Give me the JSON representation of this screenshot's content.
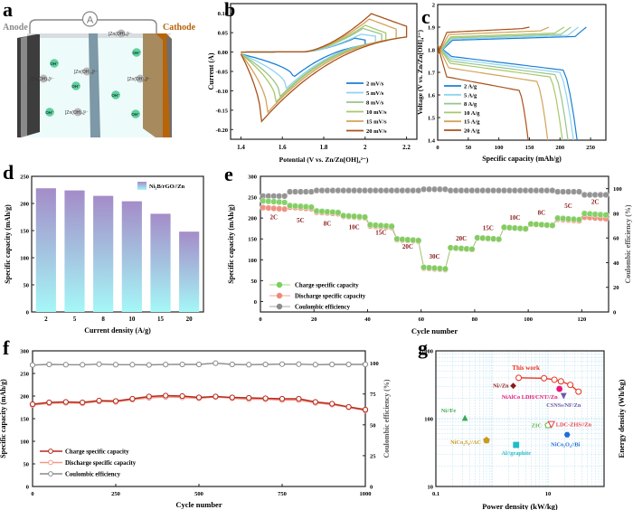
{
  "figure": {
    "panel_labels": [
      "a",
      "b",
      "c",
      "d",
      "e",
      "f",
      "g"
    ]
  },
  "schematic": {
    "anode_label": "Anode",
    "cathode_label": "Cathode",
    "ammeter_label": "A",
    "species": [
      {
        "text": "[Zn(OH)₄]²⁻",
        "kind": "zincate"
      },
      {
        "text": "[Zn(OH)₄]²⁻",
        "kind": "zincate"
      },
      {
        "text": "[Zn(OH)₄]²⁻",
        "kind": "zincate"
      },
      {
        "text": "[Zn(OH)₄]²⁻",
        "kind": "zincate"
      },
      {
        "text": "[Zn(OH)₄]²⁻",
        "kind": "zincate"
      },
      {
        "text": "OH⁻",
        "kind": "hydroxide"
      },
      {
        "text": "OH⁻",
        "kind": "hydroxide"
      },
      {
        "text": "OH⁻",
        "kind": "hydroxide"
      },
      {
        "text": "OH⁻",
        "kind": "hydroxide"
      },
      {
        "text": "OH⁻",
        "kind": "hydroxide"
      },
      {
        "text": "OH⁻",
        "kind": "hydroxide"
      }
    ],
    "colors": {
      "anode": "#3d3d3d",
      "cathode": "#a78a5e",
      "cathode_edge": "#b8640a",
      "separator": "#7d98a6",
      "electrolyte": "#eefbfb",
      "oh": "#5fcf9f",
      "zincate": "#b9b9b9",
      "anode_text": "#8a8a8a",
      "cathode_text": "#b8640a"
    }
  },
  "chart_data": [
    {
      "id": "b",
      "type": "line",
      "title": "",
      "xlabel": "Potential (V vs. Zn/Zn[OH]₄²⁻)",
      "ylabel": "Current (A)",
      "xlim": [
        1.35,
        2.25
      ],
      "ylim": [
        -0.225,
        0.125
      ],
      "xticks": [
        1.4,
        1.6,
        1.8,
        2.0,
        2.2
      ],
      "yticks": [
        0.1,
        0.05,
        0.0,
        -0.05,
        -0.1,
        -0.15,
        -0.2
      ],
      "ytick_labels": [
        "0.10",
        "0.05",
        "0.00",
        "-0.05",
        "-0.10",
        "-0.15",
        "-0.20"
      ],
      "legend_position": "bottom-right",
      "series": [
        {
          "name": "2 mV/s",
          "color": "#1a7fd4",
          "vmin": 1.4,
          "vmax": 2.0,
          "cathodic_peak": [
            1.65,
            -0.06
          ],
          "anodic_peak": [
            1.95,
            0.035
          ],
          "end_current": 0.03
        },
        {
          "name": "5 mV/s",
          "color": "#8fd3f0",
          "vmin": 1.4,
          "vmax": 2.05,
          "cathodic_peak": [
            1.62,
            -0.088
          ],
          "anodic_peak": [
            1.98,
            0.045
          ],
          "end_current": 0.04
        },
        {
          "name": "8 mV/s",
          "color": "#98c48a",
          "vmin": 1.4,
          "vmax": 2.08,
          "cathodic_peak": [
            1.59,
            -0.11
          ],
          "anodic_peak": [
            1.99,
            0.06
          ],
          "end_current": 0.045
        },
        {
          "name": "10 mV/s",
          "color": "#a7c86a",
          "vmin": 1.4,
          "vmax": 2.1,
          "cathodic_peak": [
            1.57,
            -0.125
          ],
          "anodic_peak": [
            2.0,
            0.068
          ],
          "end_current": 0.048
        },
        {
          "name": "15 mV/s",
          "color": "#d4a25a",
          "vmin": 1.4,
          "vmax": 2.15,
          "cathodic_peak": [
            1.53,
            -0.153
          ],
          "anodic_peak": [
            2.02,
            0.084
          ],
          "end_current": 0.058
        },
        {
          "name": "20 mV/s",
          "color": "#a9521a",
          "vmin": 1.4,
          "vmax": 2.2,
          "cathodic_peak": [
            1.5,
            -0.178
          ],
          "anodic_peak": [
            2.03,
            0.098
          ],
          "end_current": 0.065
        }
      ]
    },
    {
      "id": "c",
      "type": "line",
      "xlabel": "Specific capacity (mAh/g)",
      "ylabel": "Voltage (V vs. Zn/Zn[OH]₄²⁻)",
      "xlim": [
        0,
        275
      ],
      "ylim": [
        1.4,
        2.0
      ],
      "xticks": [
        0,
        50,
        100,
        150,
        200,
        250
      ],
      "yticks": [
        1.4,
        1.5,
        1.6,
        1.7,
        1.8,
        1.9,
        2.0
      ],
      "legend_position": "bottom-left",
      "series": [
        {
          "name": "2 A/g",
          "color": "#1a7fd4",
          "charge_capacity": 243,
          "discharge_capacity": 228,
          "charge_plateau": 1.84,
          "discharge_plateau": 1.74
        },
        {
          "name": "5 A/g",
          "color": "#8fd3f0",
          "charge_capacity": 230,
          "discharge_capacity": 222,
          "charge_plateau": 1.845,
          "discharge_plateau": 1.73
        },
        {
          "name": "8 A/g",
          "color": "#98c48a",
          "charge_capacity": 218,
          "discharge_capacity": 213,
          "charge_plateau": 1.85,
          "discharge_plateau": 1.72
        },
        {
          "name": "10 A/g",
          "color": "#a7c86a",
          "charge_capacity": 207,
          "discharge_capacity": 204,
          "charge_plateau": 1.855,
          "discharge_plateau": 1.71
        },
        {
          "name": "15 A/g",
          "color": "#d4a25a",
          "charge_capacity": 182,
          "discharge_capacity": 180,
          "charge_plateau": 1.865,
          "discharge_plateau": 1.69
        },
        {
          "name": "20 A/g",
          "color": "#a9521a",
          "charge_capacity": 150,
          "discharge_capacity": 148,
          "charge_plateau": 1.875,
          "discharge_plateau": 1.65
        }
      ]
    },
    {
      "id": "d",
      "type": "bar",
      "xlabel": "Current density (A/g)",
      "ylabel": "Specific capacity (mAh/g)",
      "categories": [
        "2",
        "5",
        "8",
        "10",
        "15",
        "20"
      ],
      "values": [
        228,
        224,
        214,
        204,
        181,
        148
      ],
      "ylim": [
        0,
        250
      ],
      "yticks": [
        0,
        50,
        100,
        150,
        200,
        250
      ],
      "legend": "Ni₂B/rGO//Zn",
      "legend_position": "top-right",
      "gradient_top": "#a48cc8",
      "gradient_bottom": "#a5f7f7"
    },
    {
      "id": "e",
      "type": "scatter",
      "xlabel": "Cycle number",
      "ylabel": "Specific capacity (mAh/g)",
      "y2label": "Coulombic efficiency (%)",
      "xlim": [
        0,
        130
      ],
      "ylim": [
        -25,
        300
      ],
      "y2lim": [
        0,
        110
      ],
      "xticks": [
        0,
        20,
        40,
        60,
        80,
        100,
        120
      ],
      "yticks": [
        0,
        50,
        100,
        150,
        200,
        250,
        300
      ],
      "y2ticks": [
        0,
        20,
        40,
        60,
        80,
        100
      ],
      "legend_position": "bottom-left",
      "rate_labels": [
        {
          "text": "2C",
          "x": 5,
          "y": 197
        },
        {
          "text": "5C",
          "x": 15,
          "y": 190
        },
        {
          "text": "8C",
          "x": 25,
          "y": 182
        },
        {
          "text": "10C",
          "x": 35,
          "y": 173
        },
        {
          "text": "15C",
          "x": 45,
          "y": 160
        },
        {
          "text": "20C",
          "x": 55,
          "y": 127
        },
        {
          "text": "30C",
          "x": 65,
          "y": 103
        },
        {
          "text": "20C",
          "x": 75,
          "y": 146
        },
        {
          "text": "15C",
          "x": 85,
          "y": 171
        },
        {
          "text": "10C",
          "x": 95,
          "y": 196
        },
        {
          "text": "8C",
          "x": 105,
          "y": 208
        },
        {
          "text": "5C",
          "x": 115,
          "y": 224
        },
        {
          "text": "2C",
          "x": 125,
          "y": 234
        }
      ],
      "series": [
        {
          "name": "Charge specific capacity",
          "color": "#7ccf5f",
          "axis": "left",
          "segments": [
            [
              1,
              10,
              241
            ],
            [
              11,
              20,
              230
            ],
            [
              21,
              30,
              217
            ],
            [
              31,
              40,
              206
            ],
            [
              41,
              50,
              184
            ],
            [
              51,
              60,
              150
            ],
            [
              61,
              70,
              82
            ],
            [
              71,
              80,
              129
            ],
            [
              81,
              90,
              153
            ],
            [
              91,
              100,
              178
            ],
            [
              101,
              110,
              186
            ],
            [
              111,
              120,
              200
            ],
            [
              121,
              130,
              211
            ]
          ]
        },
        {
          "name": "Discharge specific capacity",
          "color": "#f08878",
          "axis": "left",
          "segments": [
            [
              1,
              10,
              225
            ],
            [
              11,
              20,
              226
            ],
            [
              21,
              30,
              214
            ],
            [
              31,
              40,
              204
            ],
            [
              41,
              50,
              181
            ],
            [
              51,
              60,
              148
            ],
            [
              61,
              70,
              80
            ],
            [
              71,
              80,
              128
            ],
            [
              81,
              90,
              152
            ],
            [
              91,
              100,
              177
            ],
            [
              101,
              110,
              185
            ],
            [
              111,
              120,
              197
            ],
            [
              121,
              130,
              202
            ]
          ]
        },
        {
          "name": "Coulombic efficiency",
          "color": "#8c8c8c",
          "axis": "right",
          "segments": [
            [
              1,
              10,
              94
            ],
            [
              11,
              20,
              97.5
            ],
            [
              21,
              60,
              98.5
            ],
            [
              61,
              70,
              99.5
            ],
            [
              71,
              110,
              98.5
            ],
            [
              111,
              120,
              97.5
            ],
            [
              121,
              130,
              95
            ]
          ]
        }
      ]
    },
    {
      "id": "f",
      "type": "line",
      "xlabel": "Cycle number",
      "ylabel": "Specific capacity (mAh/g)",
      "y2label": "Coulombic efficiency (%)",
      "xlim": [
        0,
        1000
      ],
      "ylim": [
        0,
        300
      ],
      "y2lim": [
        0,
        110
      ],
      "xticks": [
        0,
        250,
        500,
        750,
        1000
      ],
      "yticks": [
        0,
        50,
        100,
        150,
        200,
        250,
        300
      ],
      "y2ticks": [
        0,
        25,
        50,
        75,
        100
      ],
      "legend_position": "bottom-left",
      "x": [
        0,
        50,
        100,
        150,
        200,
        250,
        300,
        350,
        400,
        450,
        500,
        550,
        600,
        650,
        700,
        750,
        800,
        850,
        900,
        950,
        1000
      ],
      "series": [
        {
          "name": "Charge specific capacity",
          "color": "#b52a1c",
          "axis": "left",
          "values": [
            182,
            186,
            187,
            186,
            190,
            189,
            194,
            199,
            201,
            200,
            197,
            199,
            197,
            196,
            195,
            194,
            194,
            187,
            183,
            176,
            170
          ]
        },
        {
          "name": "Discharge specific capacity",
          "color": "#f29a8c",
          "axis": "left",
          "values": [
            180,
            184,
            185,
            184,
            188,
            187,
            192,
            196,
            198,
            197,
            195,
            198,
            195,
            193,
            193,
            191,
            191,
            185,
            181,
            175,
            168
          ]
        },
        {
          "name": "Coulombic efficiency",
          "color": "#8c8c8c",
          "axis": "right",
          "values": [
            98.5,
            99,
            98.8,
            98.7,
            99.2,
            98.8,
            98.8,
            98.6,
            98.9,
            99,
            99,
            100,
            99,
            98.8,
            99,
            99.2,
            99.2,
            98.8,
            99,
            99,
            99
          ]
        }
      ]
    },
    {
      "id": "g",
      "type": "scatter",
      "xlabel": "Power density (kW/kg)",
      "ylabel": "Energy density (Wh/kg)",
      "xscale": "log",
      "yscale": "log",
      "xlim": [
        0.1,
        100
      ],
      "ylim": [
        10,
        1000
      ],
      "xtick_labels": [
        "0.1",
        "10"
      ],
      "xticks": [
        0.1,
        10
      ],
      "ytick_labels": [
        "10",
        "100",
        "1000"
      ],
      "yticks": [
        10,
        100,
        1000
      ],
      "this_work": {
        "label": "This work",
        "color": "#e8321e",
        "x": [
          3.0,
          8.5,
          13,
          17,
          25,
          35
        ],
        "y": [
          400,
          395,
          375,
          355,
          315,
          250
        ]
      },
      "points": [
        {
          "label": "Ni//Zn",
          "x": 2.4,
          "y": 305,
          "color": "#8b1a1a",
          "marker": "diamond"
        },
        {
          "label": "NiAlCo LDH/CNT//Zn",
          "x": 16,
          "y": 275,
          "color": "#e8157a",
          "marker": "circle"
        },
        {
          "label": "CSNSs/NF/Zn",
          "x": 19,
          "y": 215,
          "color": "#6e58a8",
          "marker": "triangle-down"
        },
        {
          "label": "Ni//Fe",
          "x": 0.33,
          "y": 103,
          "color": "#3aa857",
          "marker": "triangle-up"
        },
        {
          "label": "ZIC",
          "x": 10,
          "y": 80,
          "color": "#6ab63c",
          "marker": "pentagon-open"
        },
        {
          "label": "LDC-ZHS//Zn",
          "x": 11.5,
          "y": 82,
          "color": "#e6414a",
          "marker": "triangle-down-open"
        },
        {
          "label": "NiCo₂S₄//AC",
          "x": 0.8,
          "y": 48,
          "color": "#c99a1e",
          "marker": "pentagon"
        },
        {
          "label": "NiCo₂O₄//Bi",
          "x": 22,
          "y": 58,
          "color": "#1f6fd8",
          "marker": "hexagon"
        },
        {
          "label": "Al//graphite",
          "x": 2.7,
          "y": 41,
          "color": "#1fbcc8",
          "marker": "square"
        }
      ],
      "grid": true
    }
  ]
}
